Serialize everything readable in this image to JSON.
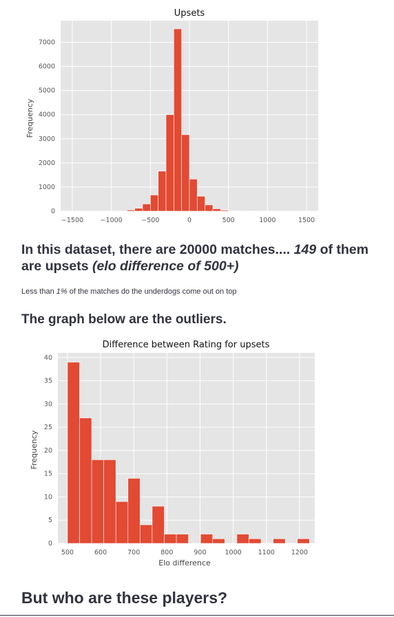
{
  "chart_data": [
    {
      "type": "bar",
      "title": "Upsets",
      "xlabel": "",
      "ylabel": "Frequency",
      "bin_width": 100,
      "xlim": [
        -1650,
        1650
      ],
      "ylim": [
        0,
        7900
      ],
      "xticks": [
        -1500,
        -1000,
        -500,
        0,
        500,
        1000,
        1500
      ],
      "yticks": [
        0,
        1000,
        2000,
        3000,
        4000,
        5000,
        6000,
        7000
      ],
      "bins": [
        -1000,
        -900,
        -800,
        -700,
        -600,
        -500,
        -400,
        -300,
        -200,
        -100,
        0,
        100,
        200,
        300,
        400,
        500,
        600,
        700,
        800,
        900,
        1000
      ],
      "values": [
        10,
        20,
        50,
        120,
        300,
        670,
        1660,
        4000,
        7560,
        3170,
        1330,
        620,
        260,
        100,
        40,
        15,
        8,
        5,
        3,
        2,
        1
      ],
      "bar_color": "#e24a33",
      "background": "#e5e5e5",
      "grid": true
    },
    {
      "type": "bar",
      "title": "Difference between Rating for upsets",
      "xlabel": "Elo difference",
      "ylabel": "Frequency",
      "bin_width": 36.5,
      "xlim": [
        471,
        1246
      ],
      "ylim": [
        0,
        41
      ],
      "xticks": [
        500,
        600,
        700,
        800,
        900,
        1000,
        1100,
        1200
      ],
      "yticks": [
        0,
        5,
        10,
        15,
        20,
        25,
        30,
        35,
        40
      ],
      "bins": [
        500,
        536.5,
        573,
        609.5,
        646,
        682.5,
        719,
        755.5,
        792,
        828.5,
        865,
        901.5,
        938,
        974.5,
        1011,
        1047.5,
        1084,
        1120.5,
        1157,
        1193.5
      ],
      "values": [
        39,
        27,
        18,
        18,
        9,
        14,
        4,
        8,
        2,
        2,
        0,
        2,
        1,
        0,
        2,
        1,
        0,
        1,
        0,
        1
      ],
      "bar_color": "#e24a33",
      "background": "#e5e5e5",
      "grid": true
    }
  ],
  "text": {
    "summary_prefix": "In this dataset, there are 20000 matches.... ",
    "summary_count": "149",
    "summary_middle": " of them are upsets ",
    "summary_paren": "(elo difference of 500+)",
    "note_prefix": "Less than ",
    "note_pct": "1%",
    "note_suffix": " of the matches do the underdogs come out on top",
    "outliers_heading": "The graph below are the outliers.",
    "players_heading": "But who are these players?"
  }
}
